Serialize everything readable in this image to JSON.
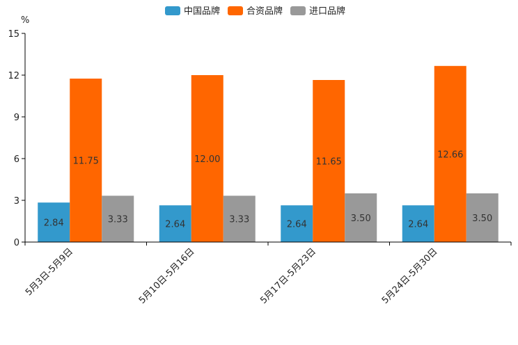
{
  "chart_data": {
    "type": "bar",
    "title": "",
    "ylabel": "%",
    "xlabel": "",
    "ylim": [
      0,
      15
    ],
    "yticks": [
      0,
      3,
      6,
      9,
      12,
      15
    ],
    "categories": [
      "5月3日-5月9日",
      "5月10日-5月16日",
      "5月17日-5月23日",
      "5月24日-5月30日"
    ],
    "series": [
      {
        "name": "中国品牌",
        "color": "#3399cc",
        "values": [
          2.84,
          2.64,
          2.64,
          2.64
        ],
        "labels": [
          "2.84",
          "2.64",
          "2.64",
          "2.64"
        ]
      },
      {
        "name": "合资品牌",
        "color": "#ff6600",
        "values": [
          11.75,
          12.0,
          11.65,
          12.66
        ],
        "labels": [
          "11.75",
          "12.00",
          "11.65",
          "12.66"
        ]
      },
      {
        "name": "进口品牌",
        "color": "#999999",
        "values": [
          3.33,
          3.33,
          3.5,
          3.5
        ],
        "labels": [
          "3.33",
          "3.33",
          "3.50",
          "3.50"
        ]
      }
    ],
    "legend_position": "top-center"
  }
}
